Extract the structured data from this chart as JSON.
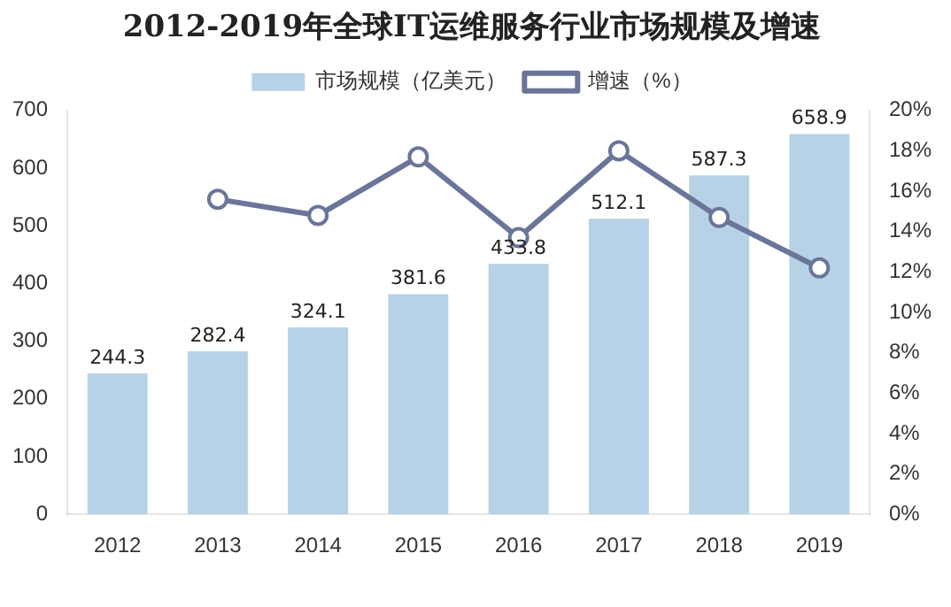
{
  "chart_data": {
    "type": "bar",
    "title": "2012-2019年全球IT运维服务行业市场规模及增速",
    "categories": [
      "2012",
      "2013",
      "2014",
      "2015",
      "2016",
      "2017",
      "2018",
      "2019"
    ],
    "series": [
      {
        "name": "市场规模（亿美元）",
        "color": "#b7d2e6",
        "values": [
          244.3,
          282.4,
          324.1,
          381.6,
          433.8,
          512.1,
          587.3,
          658.9
        ],
        "value_labels": [
          "244.3",
          "282.4",
          "324.1",
          "381.6",
          "433.8",
          "512.1",
          "587.3",
          "658.9"
        ]
      },
      {
        "name": "增速（%）",
        "type": "line",
        "axis": "y2",
        "color": "#6a7599",
        "marker": "circle",
        "values": [
          null,
          15.6,
          14.8,
          17.7,
          13.7,
          18.0,
          14.7,
          12.2
        ]
      }
    ],
    "ylim": [
      0,
      700
    ],
    "yticks": [
      0,
      100,
      200,
      300,
      400,
      500,
      600,
      700
    ],
    "y2lim": [
      0,
      20
    ],
    "y2ticks": [
      {
        "value": 0,
        "label": "0%"
      },
      {
        "value": 2,
        "label": "2%"
      },
      {
        "value": 4,
        "label": "4%"
      },
      {
        "value": 6,
        "label": "6%"
      },
      {
        "value": 8,
        "label": "8%"
      },
      {
        "value": 10,
        "label": "10%"
      },
      {
        "value": 12,
        "label": "12%"
      },
      {
        "value": 14,
        "label": "14%"
      },
      {
        "value": 16,
        "label": "16%"
      },
      {
        "value": 18,
        "label": "18%"
      },
      {
        "value": 20,
        "label": "20%"
      }
    ],
    "legend": "top",
    "grid": false
  }
}
